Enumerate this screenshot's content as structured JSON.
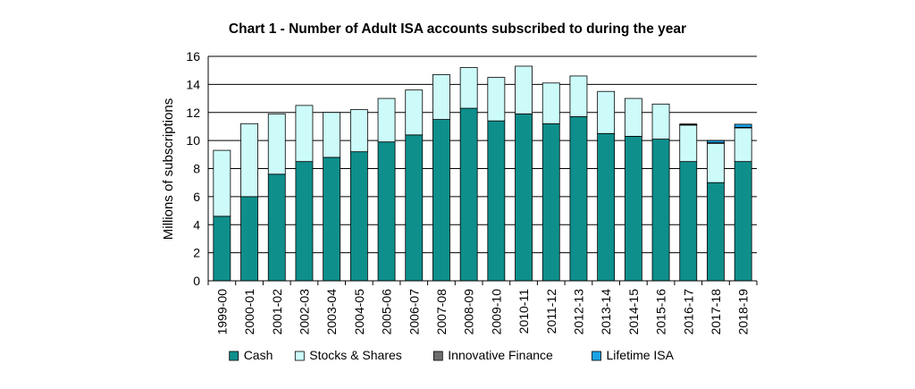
{
  "chart_data": {
    "type": "bar",
    "stacked": true,
    "title": "Chart 1 - Number of Adult ISA accounts subscribed to during the year",
    "xlabel": "",
    "ylabel": "Millions of subscriptions",
    "ylim": [
      0,
      16
    ],
    "yticks": [
      0,
      2,
      4,
      6,
      8,
      10,
      12,
      14,
      16
    ],
    "grid": true,
    "legend": "bottom",
    "categories": [
      "1999-00",
      "2000-01",
      "2001-02",
      "2002-03",
      "2003-04",
      "2004-05",
      "2005-06",
      "2006-07",
      "2007-08",
      "2008-09",
      "2009-10",
      "2010-11",
      "2011-12",
      "2012-13",
      "2013-14",
      "2014-15",
      "2015-16",
      "2016-17",
      "2017-18",
      "2018-19"
    ],
    "series": [
      {
        "name": "Cash",
        "color": "#0e8f8c",
        "values": [
          4.6,
          6.0,
          7.6,
          8.5,
          8.8,
          9.2,
          9.9,
          10.4,
          11.5,
          12.3,
          11.4,
          11.9,
          11.2,
          11.7,
          10.5,
          10.3,
          10.1,
          8.5,
          7.0,
          8.5
        ]
      },
      {
        "name": "Stocks & Shares",
        "color": "#ccfbfa",
        "values": [
          4.7,
          5.2,
          4.3,
          4.0,
          3.2,
          3.0,
          3.1,
          3.2,
          3.2,
          2.9,
          3.1,
          3.4,
          2.9,
          2.9,
          3.0,
          2.7,
          2.5,
          2.6,
          2.8,
          2.4
        ]
      },
      {
        "name": "Innovative Finance",
        "color": "#6d6d6d",
        "values": [
          0,
          0,
          0,
          0,
          0,
          0,
          0,
          0,
          0,
          0,
          0,
          0,
          0,
          0,
          0,
          0,
          0,
          0.03,
          0.04,
          0.04
        ]
      },
      {
        "name": "Lifetime ISA",
        "color": "#1aa3e6",
        "values": [
          0,
          0,
          0,
          0,
          0,
          0,
          0,
          0,
          0,
          0,
          0,
          0,
          0,
          0,
          0,
          0,
          0,
          0.05,
          0.16,
          0.22
        ]
      }
    ]
  }
}
